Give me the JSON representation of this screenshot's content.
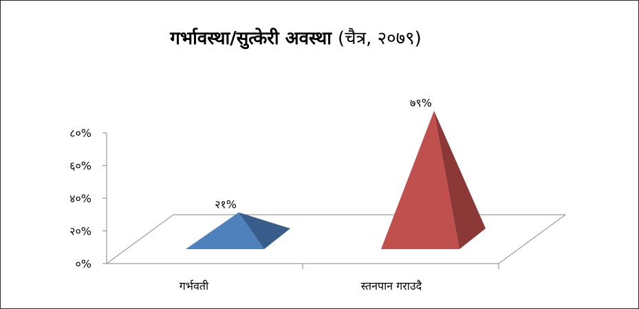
{
  "chart_data": {
    "type": "bar",
    "title": "गर्भावस्था/सुत्केरी अवस्था",
    "title_suffix": "(चैत्र, २०७९)",
    "categories": [
      "गर्भवती",
      "स्तनपान गराउदै"
    ],
    "values": [
      21,
      79
    ],
    "data_labels": [
      "२१%",
      "७९%"
    ],
    "y_ticks": [
      "०%",
      "२०%",
      "४०%",
      "६०%",
      "८०%"
    ],
    "y_tick_values": [
      0,
      20,
      40,
      60,
      80
    ],
    "ylim": [
      0,
      80
    ],
    "xlabel": "",
    "ylabel": "",
    "legend": "none",
    "grid": false,
    "shape": "pyramid-3d",
    "colors": {
      "series_front": [
        "#4f81bd",
        "#c0504d"
      ],
      "series_side": [
        "#385d8a",
        "#8c3836"
      ],
      "axis": "#868686"
    }
  }
}
